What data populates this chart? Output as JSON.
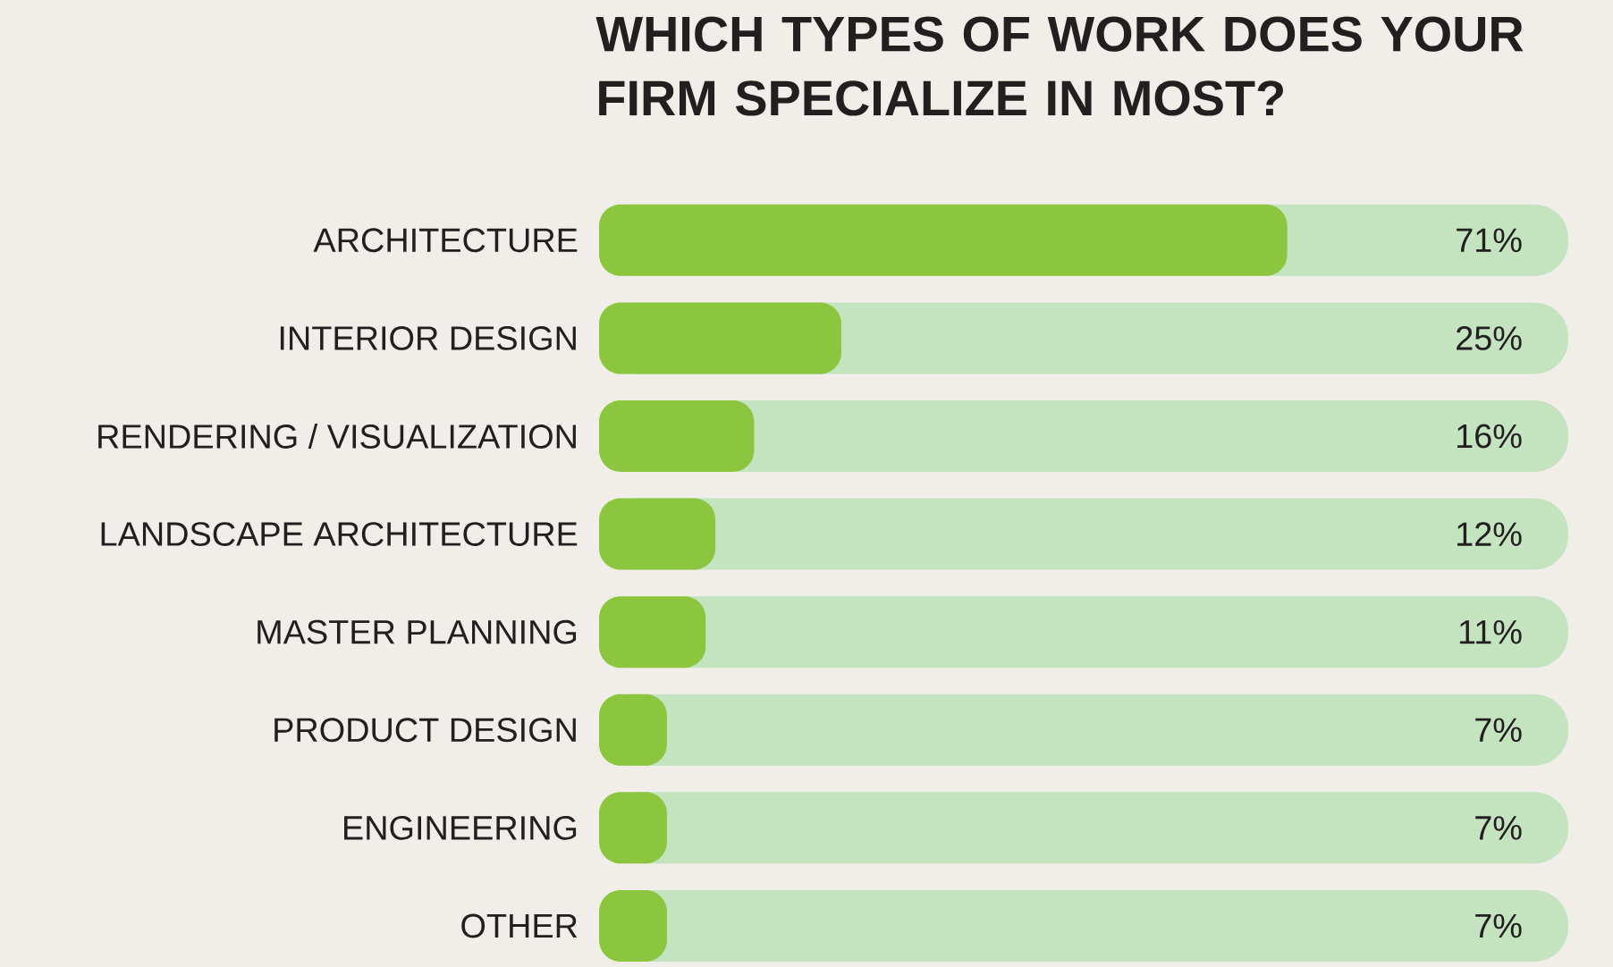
{
  "chart_data": {
    "type": "bar",
    "orientation": "horizontal",
    "title": "WHICH TYPES OF WORK DOES YOUR FIRM SPECIALIZE IN MOST?",
    "categories": [
      "ARCHITECTURE",
      "INTERIOR DESIGN",
      "RENDERING / VISUALIZATION",
      "LANDSCAPE ARCHITECTURE",
      "MASTER PLANNING",
      "PRODUCT DESIGN",
      "ENGINEERING",
      "OTHER"
    ],
    "values": [
      71,
      25,
      16,
      12,
      11,
      7,
      7,
      7
    ],
    "value_labels": [
      "71%",
      "25%",
      "16%",
      "12%",
      "11%",
      "7%",
      "7%",
      "7%"
    ],
    "color": "#8cc63f",
    "xlim": [
      0,
      100
    ],
    "tick_labels": "y"
  }
}
